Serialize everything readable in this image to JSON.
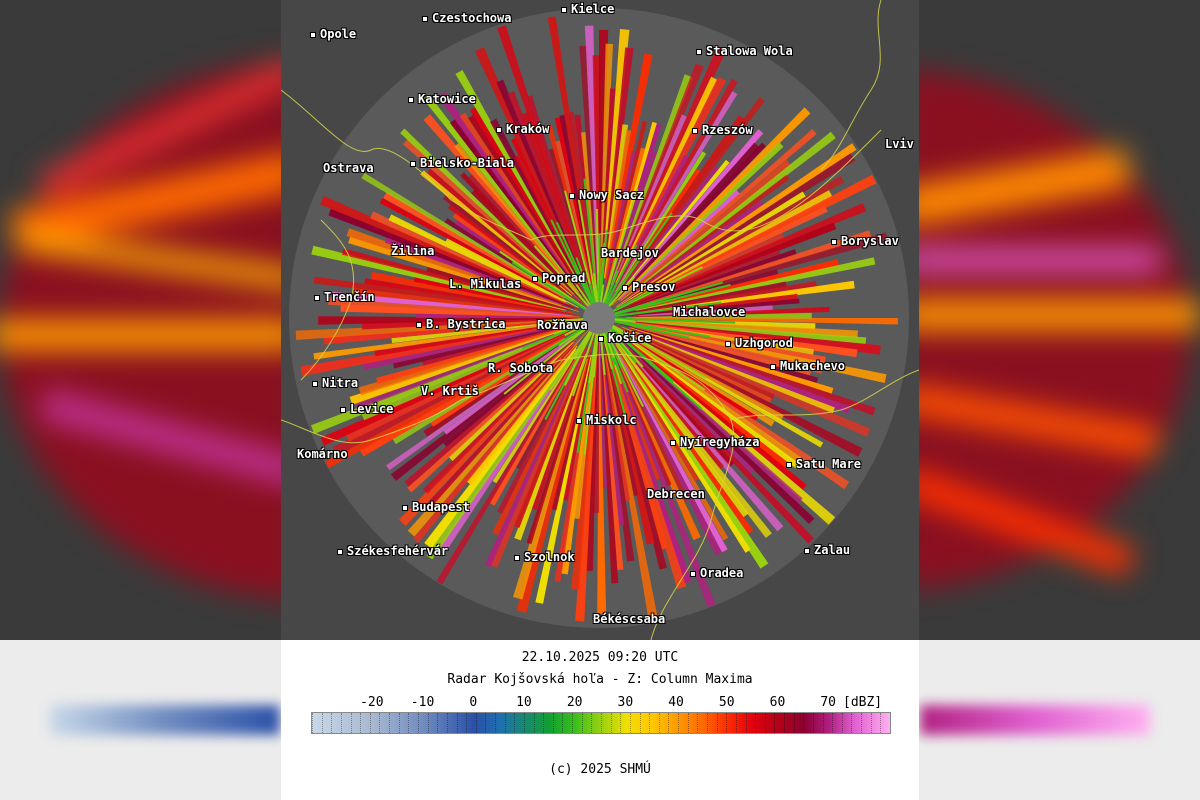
{
  "timestamp": "22.10.2025 09:20 UTC",
  "title": "Radar Kojšovská hoľa - Z: Column Maxima",
  "copyright": "(c) 2025 SHMÚ",
  "colorbar": {
    "unit": "[dBZ]",
    "ticks": [
      "-20",
      "-10",
      "0",
      "10",
      "20",
      "30",
      "40",
      "50",
      "60",
      "70"
    ],
    "tick_values": [
      -20,
      -10,
      0,
      10,
      20,
      30,
      40,
      50,
      60,
      70
    ],
    "min": -32,
    "max": 82,
    "stops": [
      {
        "value": -32,
        "color": "#c8d8e8"
      },
      {
        "value": -20,
        "color": "#a8b8d0"
      },
      {
        "value": -10,
        "color": "#6f8cc0"
      },
      {
        "value": 0,
        "color": "#2a4fa8"
      },
      {
        "value": 5,
        "color": "#1f6fb0"
      },
      {
        "value": 10,
        "color": "#168a70"
      },
      {
        "value": 15,
        "color": "#12a030"
      },
      {
        "value": 20,
        "color": "#3cc01c"
      },
      {
        "value": 25,
        "color": "#9ad010"
      },
      {
        "value": 30,
        "color": "#f0e000"
      },
      {
        "value": 35,
        "color": "#ffc800"
      },
      {
        "value": 40,
        "color": "#ff9a00"
      },
      {
        "value": 45,
        "color": "#ff6a00"
      },
      {
        "value": 50,
        "color": "#ff2a00"
      },
      {
        "value": 55,
        "color": "#e00010"
      },
      {
        "value": 60,
        "color": "#b40018"
      },
      {
        "value": 65,
        "color": "#8c0030"
      },
      {
        "value": 70,
        "color": "#b02080"
      },
      {
        "value": 75,
        "color": "#e060d0"
      },
      {
        "value": 82,
        "color": "#ffb0f0"
      }
    ]
  },
  "colors": {
    "background_grey": "#474747",
    "border_yellow": "#d8d84a",
    "city_label": "#ffffff"
  },
  "cities": [
    {
      "name": "Opole"
    },
    {
      "name": "Czestochowa"
    },
    {
      "name": "Kielce"
    },
    {
      "name": "Stalowa Wola"
    },
    {
      "name": "Katowice"
    },
    {
      "name": "Kraków"
    },
    {
      "name": "Rzeszów"
    },
    {
      "name": "Lviv"
    },
    {
      "name": "Ostrava"
    },
    {
      "name": "Bielsko-Biala"
    },
    {
      "name": "Nowy Sacz"
    },
    {
      "name": "Boryslav"
    },
    {
      "name": "Žilina"
    },
    {
      "name": "Bardejov"
    },
    {
      "name": "Poprad"
    },
    {
      "name": "L. Mikulas"
    },
    {
      "name": "Presov"
    },
    {
      "name": "Trenčín"
    },
    {
      "name": "B. Bystrica"
    },
    {
      "name": "Rožňava"
    },
    {
      "name": "Michalovce"
    },
    {
      "name": "Košice"
    },
    {
      "name": "Uzhgorod"
    },
    {
      "name": "R. Sobota"
    },
    {
      "name": "Mukachevo"
    },
    {
      "name": "Nitra"
    },
    {
      "name": "V. Krtiš"
    },
    {
      "name": "Levice"
    },
    {
      "name": "Miskolc"
    },
    {
      "name": "Nyíregyháza"
    },
    {
      "name": "Komárno"
    },
    {
      "name": "Satu Mare"
    },
    {
      "name": "Debrecen"
    },
    {
      "name": "Budapest"
    },
    {
      "name": "Székesfehérvár"
    },
    {
      "name": "Szolnok"
    },
    {
      "name": "Zalau"
    },
    {
      "name": "Oradea"
    },
    {
      "name": "Békéscsaba"
    }
  ]
}
